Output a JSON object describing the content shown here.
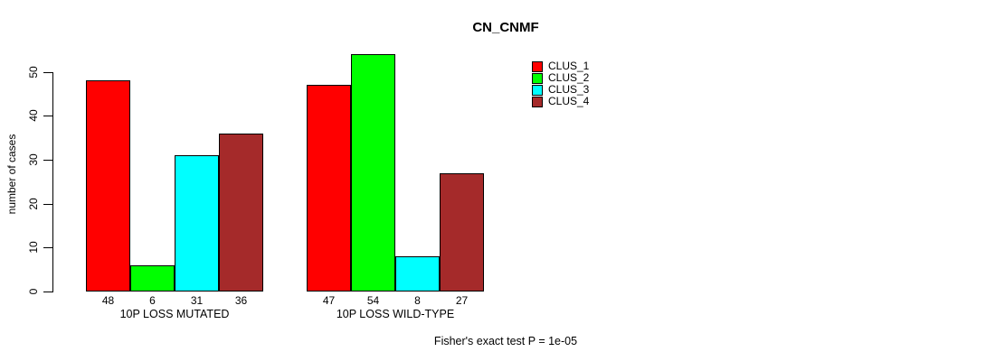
{
  "title": "CN_CNMF",
  "y_axis_label": "number of cases",
  "annotation": "Fisher's exact test P = 1e-05",
  "colors": {
    "clus_1": "#FF0000",
    "clus_2": "#00FF00",
    "clus_3": "#00FFFF",
    "clus_4": "#A52A2A",
    "axis": "#000000",
    "bar_border": "#000000",
    "background": "#FFFFFF"
  },
  "chart_data": {
    "type": "bar",
    "title": "CN_CNMF",
    "xlabel": "",
    "ylabel": "number of cases",
    "ylim": [
      0,
      50
    ],
    "yticks": [
      0,
      10,
      20,
      30,
      40,
      50
    ],
    "grid": false,
    "grouped": true,
    "legend_position": "top-right",
    "categories": [
      "10P LOSS MUTATED",
      "10P LOSS WILD-TYPE"
    ],
    "series": [
      {
        "name": "CLUS_1",
        "color": "#FF0000",
        "values": [
          48,
          47
        ]
      },
      {
        "name": "CLUS_2",
        "color": "#00FF00",
        "values": [
          6,
          54
        ]
      },
      {
        "name": "CLUS_3",
        "color": "#00FFFF",
        "values": [
          31,
          8
        ]
      },
      {
        "name": "CLUS_4",
        "color": "#A52A2A",
        "values": [
          36,
          27
        ]
      }
    ],
    "bar_value_labels": [
      [
        48,
        6,
        31,
        36
      ],
      [
        47,
        54,
        8,
        27
      ]
    ],
    "annotation": "Fisher's exact test P = 1e-05"
  },
  "legend": {
    "items": [
      {
        "label": "CLUS_1",
        "color": "#FF0000"
      },
      {
        "label": "CLUS_2",
        "color": "#00FF00"
      },
      {
        "label": "CLUS_3",
        "color": "#00FFFF"
      },
      {
        "label": "CLUS_4",
        "color": "#A52A2A"
      }
    ]
  }
}
